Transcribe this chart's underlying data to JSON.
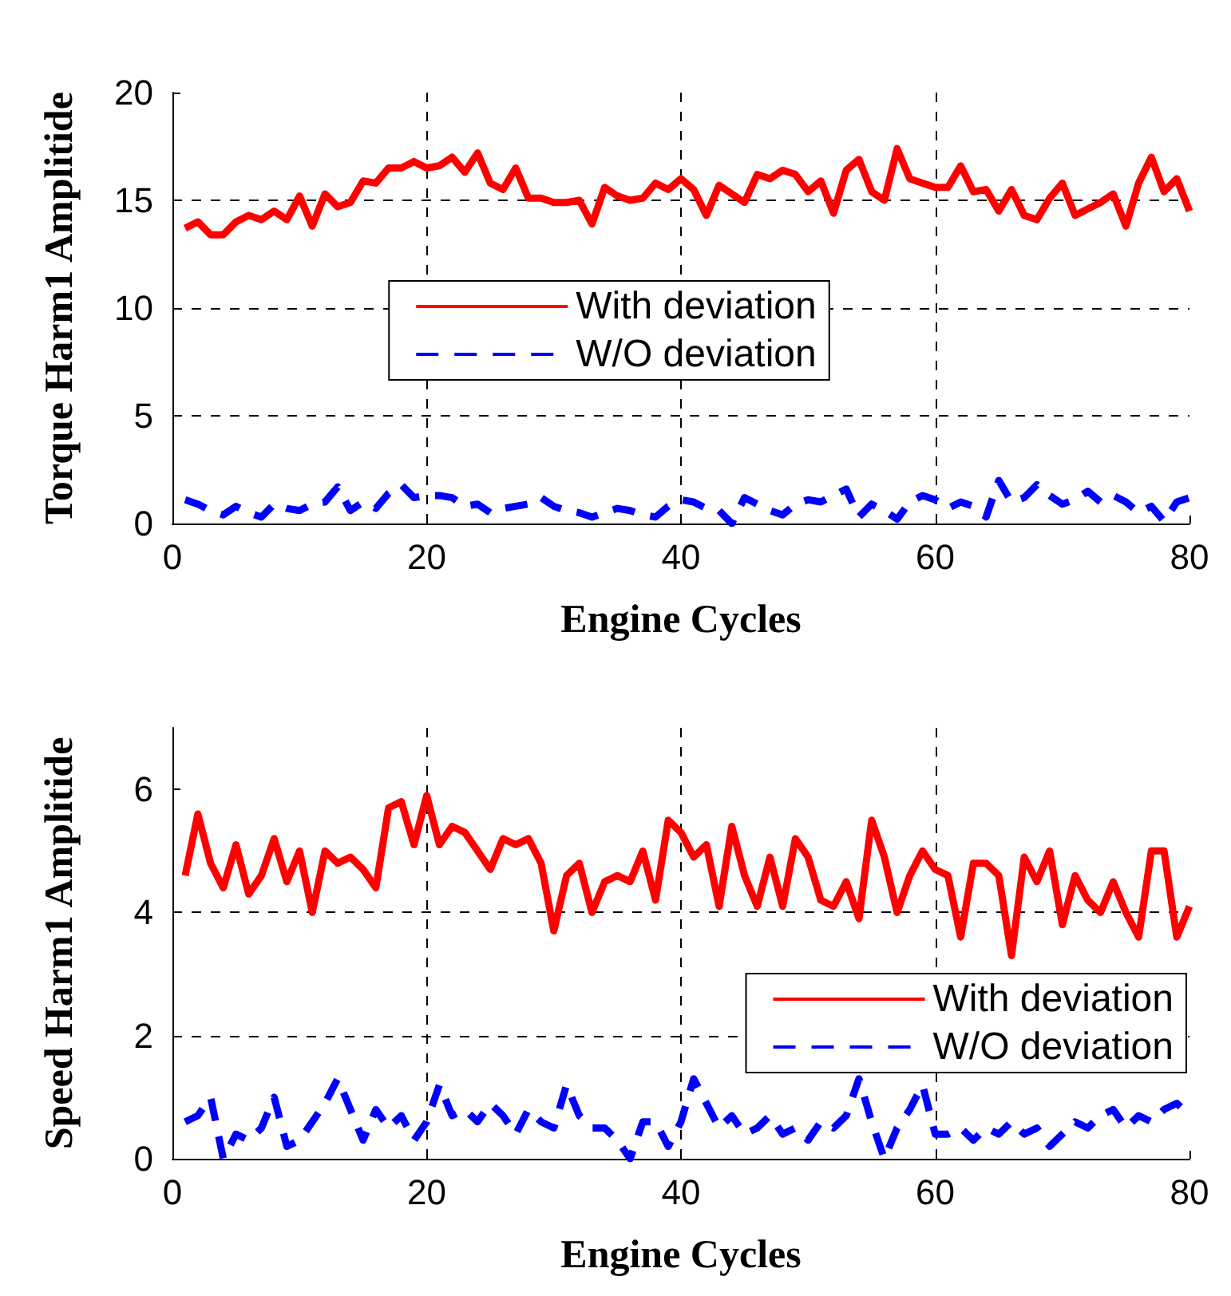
{
  "chart_data": [
    {
      "type": "line",
      "xlabel": "Engine Cycles",
      "ylabel": "Torque Harm1 Amplitide",
      "x": [
        1,
        2,
        3,
        4,
        5,
        6,
        7,
        8,
        9,
        10,
        11,
        12,
        13,
        14,
        15,
        16,
        17,
        18,
        19,
        20,
        21,
        22,
        23,
        24,
        25,
        26,
        27,
        28,
        29,
        30,
        31,
        32,
        33,
        34,
        35,
        36,
        37,
        38,
        39,
        40,
        41,
        42,
        43,
        44,
        45,
        46,
        47,
        48,
        49,
        50,
        51,
        52,
        53,
        54,
        55,
        56,
        57,
        58,
        59,
        60,
        61,
        62,
        63,
        64,
        65,
        66,
        67,
        68,
        69,
        70,
        71,
        72,
        73,
        74,
        75,
        76,
        77,
        78,
        79,
        80
      ],
      "xlim": [
        0,
        80
      ],
      "xticks": [
        0,
        20,
        40,
        60,
        80
      ],
      "ylim": [
        0,
        20
      ],
      "yticks": [
        0,
        5,
        10,
        15,
        20
      ],
      "grid": true,
      "legend": "center",
      "marker": "none",
      "series": [
        {
          "name": "With deviation",
          "color": "#ff0000",
          "line_style": "solid",
          "values": [
            13.7,
            14.0,
            13.4,
            13.4,
            14.0,
            14.3,
            14.1,
            14.5,
            14.1,
            15.2,
            13.8,
            15.3,
            14.7,
            14.9,
            15.9,
            15.8,
            16.5,
            16.5,
            16.8,
            16.5,
            16.6,
            17.0,
            16.3,
            17.2,
            15.8,
            15.5,
            16.5,
            15.1,
            15.1,
            14.9,
            14.9,
            15.0,
            13.9,
            15.6,
            15.2,
            15.0,
            15.1,
            15.8,
            15.5,
            16.0,
            15.5,
            14.3,
            15.7,
            15.3,
            14.9,
            16.2,
            16.0,
            16.4,
            16.2,
            15.4,
            15.9,
            14.4,
            16.4,
            16.9,
            15.4,
            15.0,
            17.4,
            16.0,
            15.8,
            15.6,
            15.6,
            16.6,
            15.4,
            15.5,
            14.5,
            15.5,
            14.3,
            14.1,
            15.1,
            15.8,
            14.3,
            14.6,
            14.9,
            15.3,
            13.8,
            15.8,
            17.0,
            15.4,
            16.0,
            14.5
          ]
        },
        {
          "name": "W/O deviation",
          "color": "#0000ff",
          "line_style": "dashed",
          "values": [
            1.1,
            0.9,
            0.6,
            0.4,
            0.8,
            0.5,
            0.3,
            0.9,
            0.7,
            0.6,
            0.9,
            1.0,
            1.7,
            0.6,
            1.0,
            0.7,
            1.4,
            1.8,
            1.2,
            1.3,
            1.3,
            1.2,
            0.8,
            0.9,
            0.5,
            0.7,
            0.8,
            0.9,
            1.2,
            0.8,
            0.6,
            0.5,
            0.3,
            0.5,
            0.7,
            0.6,
            0.4,
            0.3,
            0.8,
            1.1,
            1.0,
            0.7,
            0.6,
            0.0,
            1.2,
            0.9,
            0.6,
            0.4,
            0.9,
            1.1,
            1.0,
            1.3,
            1.6,
            0.3,
            0.9,
            0.6,
            0.2,
            1.0,
            1.3,
            1.1,
            0.7,
            1.0,
            0.8,
            0.3,
            2.0,
            1.0,
            1.2,
            1.8,
            1.3,
            0.9,
            1.1,
            1.5,
            1.0,
            1.3,
            1.0,
            0.5,
            0.8,
            0.1,
            1.0,
            1.2
          ]
        }
      ]
    },
    {
      "type": "line",
      "xlabel": "Engine Cycles",
      "ylabel": "Speed Harm1 Amplitide",
      "x": [
        1,
        2,
        3,
        4,
        5,
        6,
        7,
        8,
        9,
        10,
        11,
        12,
        13,
        14,
        15,
        16,
        17,
        18,
        19,
        20,
        21,
        22,
        23,
        24,
        25,
        26,
        27,
        28,
        29,
        30,
        31,
        32,
        33,
        34,
        35,
        36,
        37,
        38,
        39,
        40,
        41,
        42,
        43,
        44,
        45,
        46,
        47,
        48,
        49,
        50,
        51,
        52,
        53,
        54,
        55,
        56,
        57,
        58,
        59,
        60,
        61,
        62,
        63,
        64,
        65,
        66,
        67,
        68,
        69,
        70,
        71,
        72,
        73,
        74,
        75,
        76,
        77,
        78,
        79,
        80
      ],
      "xlim": [
        0,
        80
      ],
      "xticks": [
        0,
        20,
        40,
        60,
        80
      ],
      "ylim": [
        0,
        7
      ],
      "yticks": [
        0,
        2,
        4,
        6
      ],
      "grid": true,
      "legend": "bottom right",
      "marker": "none",
      "series": [
        {
          "name": "With deviation",
          "color": "#ff0000",
          "line_style": "solid",
          "values": [
            4.6,
            5.6,
            4.8,
            4.4,
            5.1,
            4.3,
            4.6,
            5.2,
            4.5,
            5.0,
            4.0,
            5.0,
            4.8,
            4.9,
            4.7,
            4.4,
            5.7,
            5.8,
            5.1,
            5.9,
            5.1,
            5.4,
            5.3,
            5.0,
            4.7,
            5.2,
            5.1,
            5.2,
            4.8,
            3.7,
            4.6,
            4.8,
            4.0,
            4.5,
            4.6,
            4.5,
            5.0,
            4.2,
            5.5,
            5.3,
            4.9,
            5.1,
            4.1,
            5.4,
            4.6,
            4.1,
            4.9,
            4.1,
            5.2,
            4.9,
            4.2,
            4.1,
            4.5,
            3.9,
            5.5,
            4.9,
            4.0,
            4.6,
            5.0,
            4.7,
            4.6,
            3.6,
            4.8,
            4.8,
            4.6,
            3.3,
            4.9,
            4.5,
            5.0,
            3.8,
            4.6,
            4.2,
            4.0,
            4.5,
            4.0,
            3.6,
            5.0,
            5.0,
            3.6,
            4.1
          ]
        },
        {
          "name": "W/O deviation",
          "color": "#0000ff",
          "line_style": "dashed",
          "values": [
            0.6,
            0.7,
            1.0,
            0.0,
            0.4,
            0.3,
            0.5,
            1.0,
            0.2,
            0.3,
            0.6,
            0.9,
            1.3,
            0.8,
            0.3,
            0.8,
            0.5,
            0.7,
            0.3,
            0.6,
            1.2,
            0.7,
            0.8,
            0.6,
            0.9,
            0.7,
            0.4,
            0.8,
            0.6,
            0.5,
            1.2,
            0.7,
            0.5,
            0.5,
            0.3,
            0.0,
            0.6,
            0.6,
            0.2,
            0.6,
            1.3,
            0.9,
            0.5,
            0.7,
            0.4,
            0.5,
            0.7,
            0.4,
            0.5,
            0.3,
            0.6,
            0.5,
            0.7,
            1.3,
            0.6,
            0.0,
            0.5,
            0.8,
            1.2,
            0.4,
            0.4,
            0.5,
            0.3,
            0.5,
            0.4,
            0.6,
            0.4,
            0.5,
            0.2,
            0.4,
            0.6,
            0.5,
            0.7,
            0.8,
            0.5,
            0.7,
            0.6,
            0.8,
            0.9,
            0.7
          ]
        }
      ]
    }
  ]
}
